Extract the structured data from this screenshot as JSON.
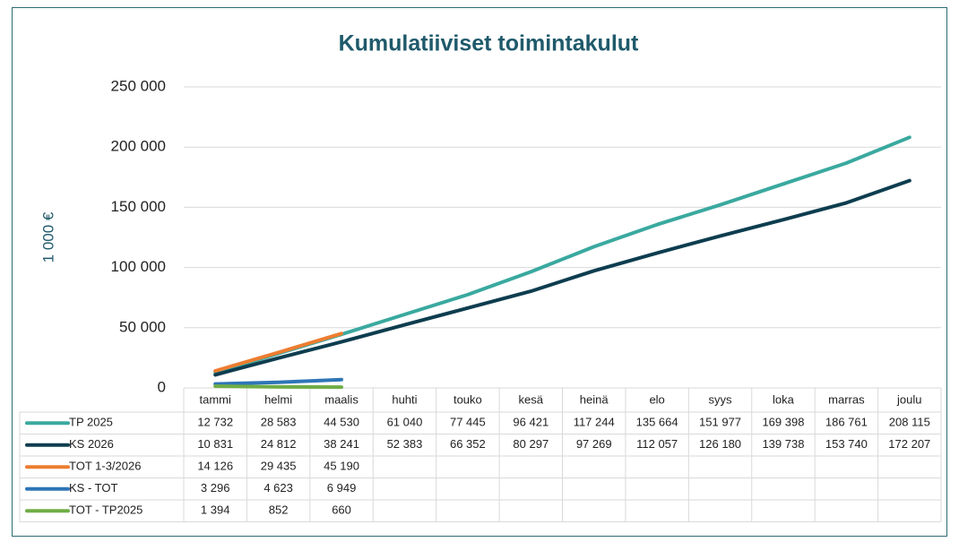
{
  "chart_data": {
    "type": "line",
    "title": "Kumulatiiviset toimintakulut",
    "y_label": "1 000 €",
    "categories": [
      "tammi",
      "helmi",
      "maalis",
      "huhti",
      "touko",
      "kesä",
      "heinä",
      "elo",
      "syys",
      "loka",
      "marras",
      "joulu"
    ],
    "ylim": [
      0,
      250000
    ],
    "yticks": [
      0,
      {
        "value": 50000,
        "label": "50 000"
      },
      {
        "value": 100000,
        "label": "100 000"
      },
      {
        "value": 150000,
        "label": "150 000"
      },
      {
        "value": 200000,
        "label": "200 000"
      },
      {
        "value": 250000,
        "label": "250 000"
      }
    ],
    "grid": true,
    "series": [
      {
        "name": "TP 2025",
        "color": "#3aa99f",
        "values": [
          12732,
          28583,
          44530,
          61040,
          77445,
          96421,
          117244,
          135664,
          151977,
          169398,
          186761,
          208115
        ],
        "value_labels": [
          "12 732",
          "28 583",
          "44 530",
          "61 040",
          "77 445",
          "96 421",
          "117 244",
          "135 664",
          "151 977",
          "169 398",
          "186 761",
          "208 115"
        ]
      },
      {
        "name": "KS 2026",
        "color": "#0d3d4f",
        "values": [
          10831,
          24812,
          38241,
          52383,
          66352,
          80297,
          97269,
          112057,
          126180,
          139738,
          153740,
          172207
        ],
        "value_labels": [
          "10 831",
          "24 812",
          "38 241",
          "52 383",
          "66 352",
          "80 297",
          "97 269",
          "112 057",
          "126 180",
          "139 738",
          "153 740",
          "172 207"
        ]
      },
      {
        "name": "TOT 1-3/2026",
        "color": "#ed7d31",
        "values": [
          14126,
          29435,
          45190,
          null,
          null,
          null,
          null,
          null,
          null,
          null,
          null,
          null
        ],
        "value_labels": [
          "14 126",
          "29 435",
          "45 190",
          null,
          null,
          null,
          null,
          null,
          null,
          null,
          null,
          null
        ]
      },
      {
        "name": "KS - TOT",
        "color": "#2e75b6",
        "values": [
          3296,
          4623,
          6949,
          null,
          null,
          null,
          null,
          null,
          null,
          null,
          null,
          null
        ],
        "value_labels": [
          "3 296",
          "4 623",
          "6 949",
          null,
          null,
          null,
          null,
          null,
          null,
          null,
          null,
          null
        ]
      },
      {
        "name": "TOT - TP2025",
        "color": "#70ad47",
        "values": [
          1394,
          852,
          660,
          null,
          null,
          null,
          null,
          null,
          null,
          null,
          null,
          null
        ],
        "value_labels": [
          "1 394",
          "852",
          "660",
          null,
          null,
          null,
          null,
          null,
          null,
          null,
          null,
          null
        ]
      }
    ]
  }
}
